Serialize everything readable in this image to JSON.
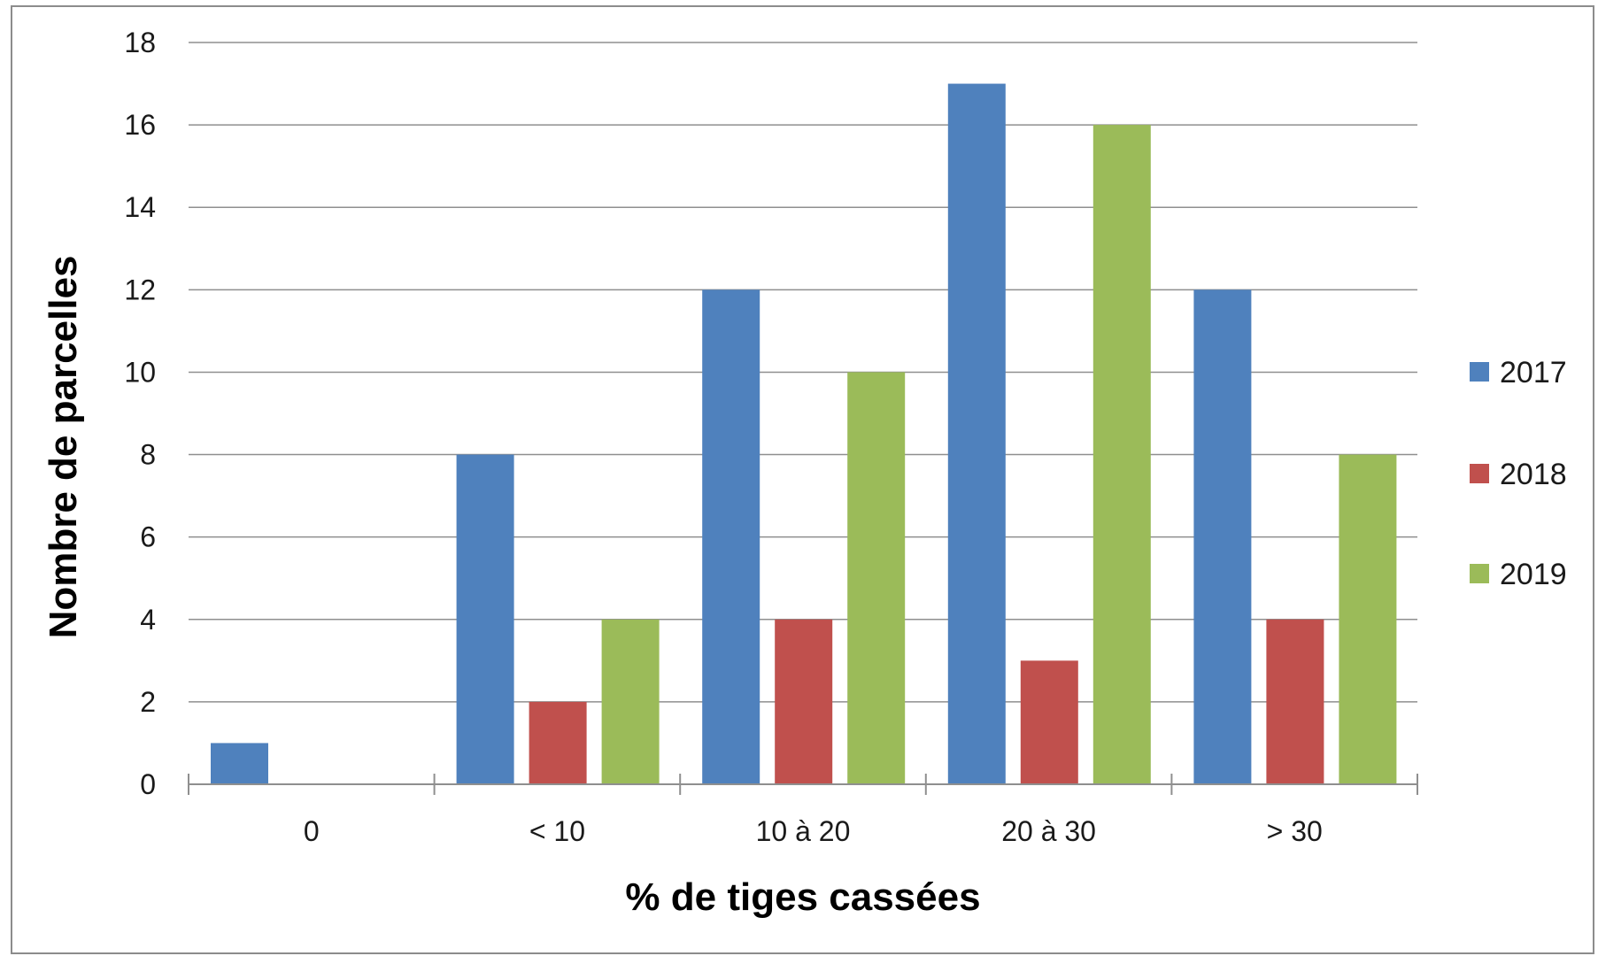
{
  "chart_data": {
    "type": "bar",
    "title": "",
    "xlabel": "% de tiges cassées",
    "ylabel": "Nombre de parcelles",
    "categories": [
      "0",
      "< 10",
      "10 à 20",
      "20 à 30",
      "> 30"
    ],
    "series": [
      {
        "name": "2017",
        "color": "#4f81bd",
        "values": [
          1,
          8,
          12,
          17,
          12
        ]
      },
      {
        "name": "2018",
        "color": "#c0504d",
        "values": [
          0,
          2,
          4,
          3,
          4
        ]
      },
      {
        "name": "2019",
        "color": "#9bbb59",
        "values": [
          0,
          4,
          10,
          16,
          8
        ]
      }
    ],
    "ylim": [
      0,
      18
    ],
    "yticks": [
      0,
      2,
      4,
      6,
      8,
      10,
      12,
      14,
      16,
      18
    ],
    "grid": true,
    "legend_position": "right"
  }
}
